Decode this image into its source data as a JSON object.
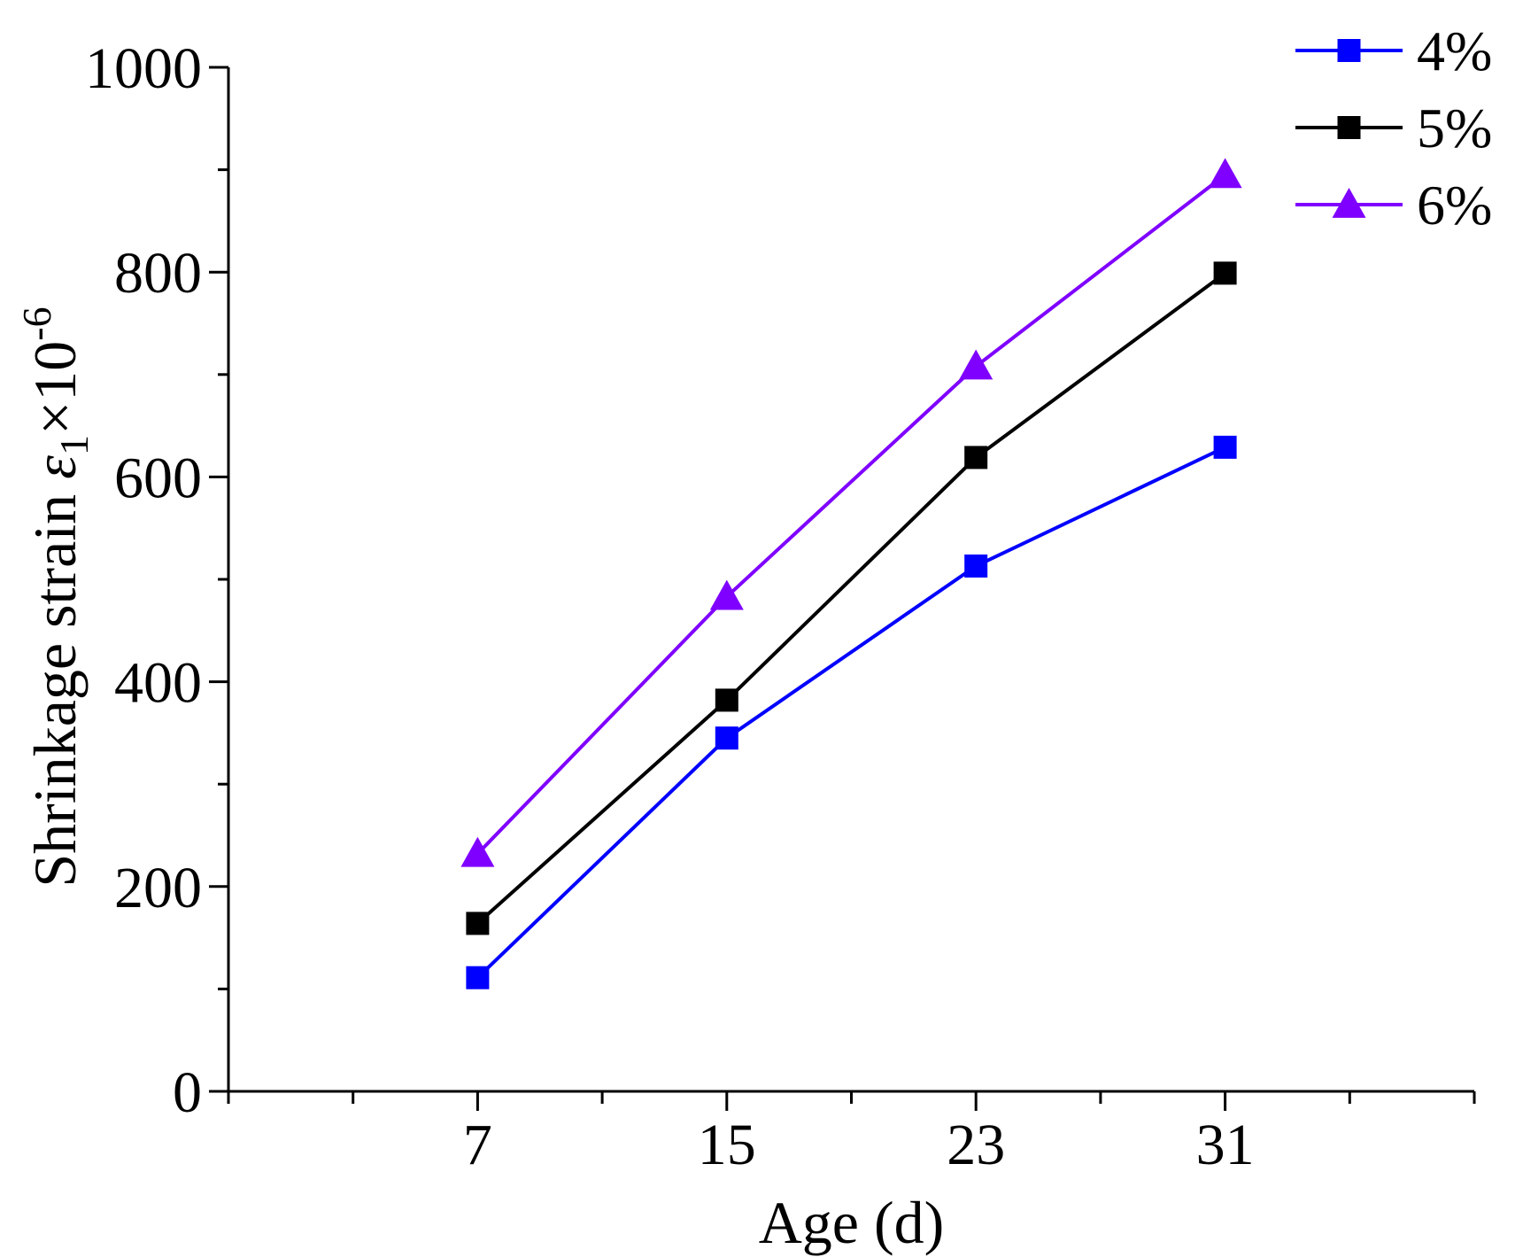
{
  "chart_data": {
    "type": "line",
    "title": "",
    "xlabel": "Age (d)",
    "ylabel": {
      "main": "Shrinkage strain ",
      "symbol": "ε",
      "subscript": "1",
      "times": "×10",
      "exponent": "-6"
    },
    "xlim": [
      -1,
      39
    ],
    "ylim": [
      0,
      1000
    ],
    "x_ticks": [
      7,
      15,
      23,
      31
    ],
    "x_minor_ticks": [
      -1,
      3,
      11,
      19,
      27,
      35,
      39
    ],
    "y_ticks": [
      0,
      200,
      400,
      600,
      800,
      1000
    ],
    "y_minor_ticks": [
      100,
      300,
      500,
      700,
      900
    ],
    "grid": false,
    "legend_position": "top-right",
    "x": [
      7,
      15,
      23,
      31
    ],
    "series": [
      {
        "name": "4%",
        "color": "#0000ff",
        "marker": "square",
        "values": [
          111,
          345,
          513,
          629
        ]
      },
      {
        "name": "5%",
        "color": "#000000",
        "marker": "square",
        "values": [
          164,
          382,
          619,
          799
        ]
      },
      {
        "name": "6%",
        "color": "#7f00ff",
        "marker": "triangle",
        "values": [
          232,
          483,
          708,
          895
        ]
      }
    ]
  }
}
